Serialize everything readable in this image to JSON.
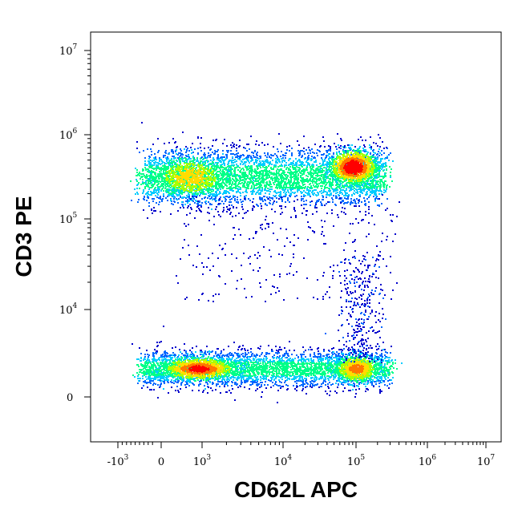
{
  "chart_data": {
    "type": "scatter",
    "title": "",
    "xlabel": "CD62L APC",
    "ylabel": "CD3 PE",
    "x_scale": "biexponential",
    "y_scale": "biexponential",
    "grid": false,
    "legend": "none",
    "x_ticks": [
      {
        "value": -1000,
        "base": "-10",
        "exp": "3"
      },
      {
        "value": 0,
        "base": "0",
        "exp": ""
      },
      {
        "value": 1000,
        "base": "10",
        "exp": "3"
      },
      {
        "value": 10000,
        "base": "10",
        "exp": "4"
      },
      {
        "value": 100000,
        "base": "10",
        "exp": "5"
      },
      {
        "value": 1000000,
        "base": "10",
        "exp": "6"
      },
      {
        "value": 10000000,
        "base": "10",
        "exp": "7"
      }
    ],
    "y_ticks": [
      {
        "value": 0,
        "base": "0",
        "exp": ""
      },
      {
        "value": 10000,
        "base": "10",
        "exp": "4"
      },
      {
        "value": 100000,
        "base": "10",
        "exp": "5"
      },
      {
        "value": 1000000,
        "base": "10",
        "exp": "6"
      },
      {
        "value": 10000000,
        "base": "10",
        "exp": "7"
      }
    ],
    "populations": [
      {
        "label": "CD3+ CD62L-",
        "cx": 700,
        "cy": 320000,
        "density": "high"
      },
      {
        "label": "CD3+ CD62L+",
        "cx": 90000,
        "cy": 420000,
        "density": "peak"
      },
      {
        "label": "CD3- CD62L-",
        "cx": 900,
        "cy": 3300,
        "density": "high"
      },
      {
        "label": "CD3- CD62L+",
        "cx": 100000,
        "cy": 3300,
        "density": "high"
      }
    ],
    "colormap": [
      "#0000cc",
      "#0066ff",
      "#00ccff",
      "#00ff88",
      "#aaff00",
      "#ffdd00",
      "#ff7700",
      "#ff0000"
    ]
  }
}
